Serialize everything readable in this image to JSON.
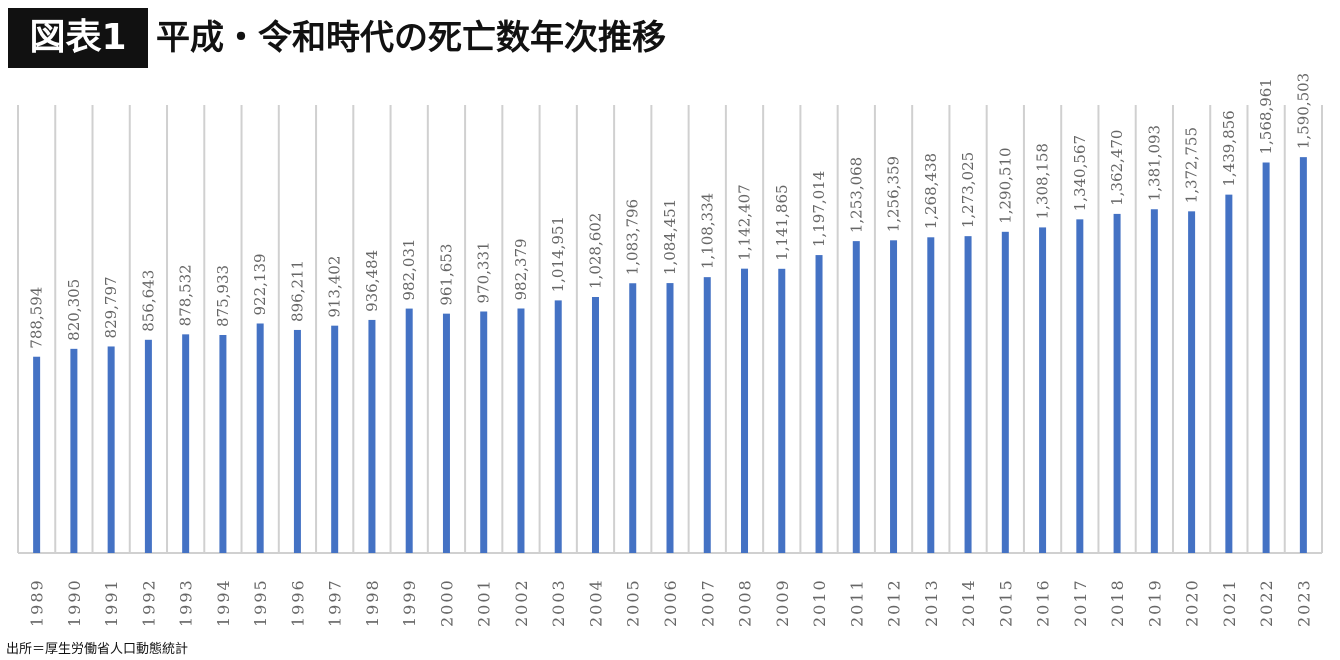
{
  "chart_data": {
    "type": "bar",
    "badge": "図表1",
    "title": "平成・令和時代の死亡数年次推移",
    "source": "出所＝厚生労働省人口動態統計",
    "xlabel": "",
    "ylabel": "",
    "ylim": [
      0,
      1800000
    ],
    "grid": "vertical",
    "bar_color": "#4472c4",
    "categories": [
      "1989",
      "1990",
      "1991",
      "1992",
      "1993",
      "1994",
      "1995",
      "1996",
      "1997",
      "1998",
      "1999",
      "2000",
      "2001",
      "2002",
      "2003",
      "2004",
      "2005",
      "2006",
      "2007",
      "2008",
      "2009",
      "2010",
      "2011",
      "2012",
      "2013",
      "2014",
      "2015",
      "2016",
      "2017",
      "2018",
      "2019",
      "2020",
      "2021",
      "2022",
      "2023"
    ],
    "values": [
      788594,
      820305,
      829797,
      856643,
      878532,
      875933,
      922139,
      896211,
      913402,
      936484,
      982031,
      961653,
      970331,
      982379,
      1014951,
      1028602,
      1083796,
      1084451,
      1108334,
      1142407,
      1141865,
      1197014,
      1253068,
      1256359,
      1268438,
      1273025,
      1290510,
      1308158,
      1340567,
      1362470,
      1381093,
      1372755,
      1439856,
      1568961,
      1590503
    ]
  }
}
